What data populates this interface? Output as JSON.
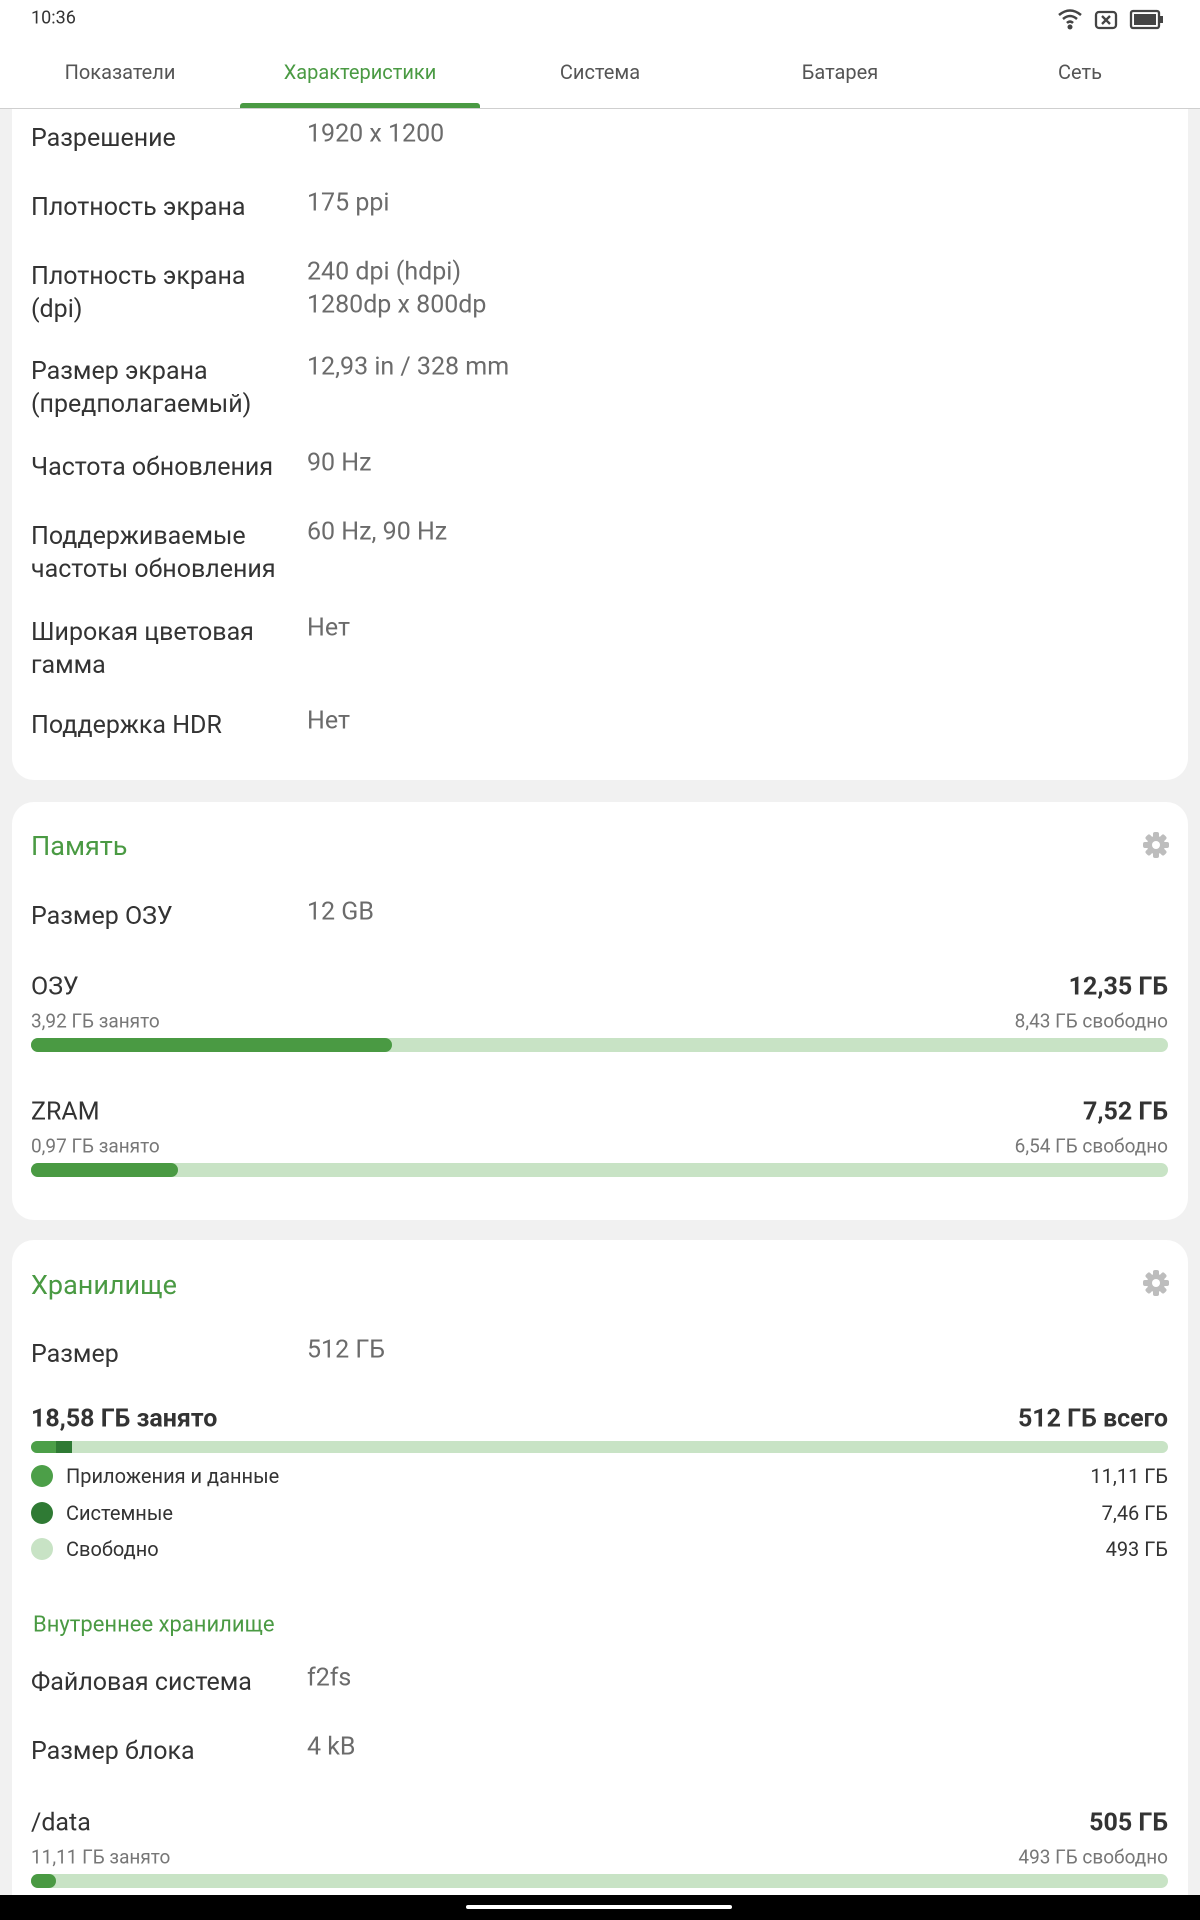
{
  "status_bar": {
    "time": "10:36"
  },
  "tabs": {
    "items": [
      "Показатели",
      "Характеристики",
      "Система",
      "Батарея",
      "Сеть"
    ],
    "selected": 1,
    "accent": "#4a9a43"
  },
  "display": {
    "rows": [
      {
        "label": "Разрешение",
        "value": [
          "1920 x 1200"
        ]
      },
      {
        "label": "Плотность экрана",
        "value": [
          "175 ppi"
        ]
      },
      {
        "label": "Плотность экрана (dpi)",
        "value": [
          "240 dpi (hdpi)",
          "1280dp x 800dp"
        ]
      },
      {
        "label": "Размер экрана (предполагаемый)",
        "value": [
          "12,93 in / 328 mm"
        ]
      },
      {
        "label": "Частота обновления",
        "value": [
          "90 Hz"
        ]
      },
      {
        "label": "Поддерживаемые частоты обновления",
        "value": [
          "60 Hz, 90 Hz"
        ]
      },
      {
        "label": "Широкая цветовая гамма",
        "value": [
          "Нет"
        ]
      },
      {
        "label": "Поддержка HDR",
        "value": [
          "Нет"
        ]
      }
    ]
  },
  "memory": {
    "title": "Память",
    "rows": [
      {
        "label": "Размер ОЗУ",
        "value": [
          "12 GB"
        ]
      }
    ],
    "bars": [
      {
        "name": "ОЗУ",
        "total": "12,35 ГБ",
        "used": "3,92 ГБ занято",
        "free": "8,43 ГБ свободно"
      },
      {
        "name": "ZRAM",
        "total": "7,52 ГБ",
        "used": "0,97 ГБ занято",
        "free": "6,54 ГБ свободно"
      }
    ]
  },
  "storage": {
    "title": "Хранилище",
    "rows": [
      {
        "label": "Размер",
        "value": [
          "512 ГБ"
        ]
      }
    ],
    "used": "18,58 ГБ занято",
    "total": "512 ГБ всего",
    "legend": [
      {
        "name": "Приложения и данные",
        "value": "11,11 ГБ",
        "color": "#4c9f48"
      },
      {
        "name": "Системные",
        "value": "7,46 ГБ",
        "color": "#2f7a34"
      },
      {
        "name": "Свободно",
        "value": "493 ГБ",
        "color": "#c8e3c5"
      }
    ],
    "internal": {
      "title": "Внутреннее хранилище",
      "rows": [
        {
          "label": "Файловая система",
          "value": [
            "f2fs"
          ]
        },
        {
          "label": "Размер блока",
          "value": [
            "4 kB"
          ]
        }
      ],
      "bars": [
        {
          "name": "/data",
          "total": "505 ГБ",
          "used": "11,11 ГБ занято",
          "free": "493 ГБ свободно"
        }
      ]
    }
  }
}
